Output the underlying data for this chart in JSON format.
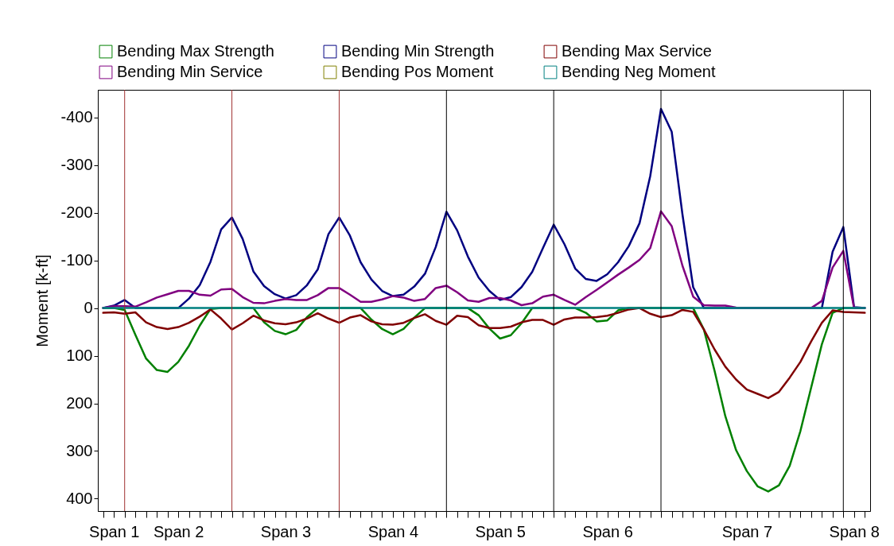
{
  "chart_data": {
    "type": "line",
    "ylabel": "Moment [k-ft]",
    "categories": [
      null,
      "Span 1",
      null,
      null,
      null,
      null,
      null,
      "Span 2",
      null,
      null,
      null,
      null,
      null,
      null,
      null,
      null,
      null,
      "Span 3",
      null,
      null,
      null,
      null,
      null,
      null,
      null,
      null,
      null,
      "Span 4",
      null,
      null,
      null,
      null,
      null,
      null,
      null,
      null,
      null,
      "Span 5",
      null,
      null,
      null,
      null,
      null,
      null,
      null,
      null,
      null,
      "Span 6",
      null,
      null,
      null,
      null,
      null,
      null,
      null,
      null,
      null,
      null,
      null,
      null,
      "Span 7",
      null,
      null,
      null,
      null,
      null,
      null,
      null,
      null,
      null,
      "Span 8",
      null
    ],
    "ylim": [
      426,
      -458
    ],
    "yticks": [
      -400,
      -300,
      -200,
      -100,
      0,
      100,
      200,
      300,
      400
    ],
    "legend": "top",
    "grid": "x",
    "series": [
      {
        "name": "Bending Max Strength",
        "color": "#008000",
        "values": [
          0,
          0,
          4,
          56,
          106,
          130,
          134,
          113,
          79,
          37,
          2,
          0,
          0,
          0,
          0,
          30,
          48,
          55,
          46,
          19,
          0,
          0,
          0,
          0,
          0,
          24,
          44,
          55,
          44,
          20,
          0,
          0,
          0,
          0,
          0,
          15,
          43,
          64,
          57,
          32,
          0,
          0,
          0,
          0,
          0,
          10,
          28,
          26,
          5,
          0,
          0,
          0,
          0,
          0,
          0,
          0,
          45,
          132,
          227,
          298,
          342,
          374,
          385,
          372,
          331,
          258,
          167,
          76,
          10,
          0,
          0,
          0
        ]
      },
      {
        "name": "Bending Min Strength",
        "color": "#000080",
        "values": [
          0,
          -5,
          -17,
          0,
          0,
          0,
          0,
          0,
          -20,
          -48,
          -97,
          -165,
          -190,
          -145,
          -77,
          -46,
          -29,
          -20,
          -27,
          -48,
          -81,
          -155,
          -190,
          -152,
          -96,
          -60,
          -36,
          -25,
          -28,
          -45,
          -72,
          -128,
          -202,
          -163,
          -108,
          -64,
          -36,
          -17,
          -23,
          -44,
          -76,
          -126,
          -175,
          -134,
          -83,
          -61,
          -57,
          -71,
          -96,
          -130,
          -178,
          -277,
          -418,
          -370,
          -197,
          -44,
          0,
          0,
          0,
          0,
          0,
          0,
          0,
          0,
          0,
          0,
          0,
          0,
          -118,
          -170,
          -2,
          0
        ]
      },
      {
        "name": "Bending Max Service",
        "color": "#800000",
        "values": [
          10,
          9,
          12,
          9,
          30,
          40,
          44,
          40,
          31,
          18,
          3,
          22,
          45,
          32,
          16,
          26,
          32,
          34,
          30,
          22,
          11,
          22,
          31,
          20,
          15,
          28,
          34,
          35,
          31,
          21,
          13,
          27,
          35,
          16,
          19,
          36,
          42,
          42,
          39,
          30,
          25,
          25,
          35,
          24,
          20,
          20,
          19,
          16,
          10,
          3,
          0,
          12,
          19,
          15,
          4,
          8,
          45,
          87,
          123,
          150,
          171,
          180,
          189,
          176,
          146,
          113,
          70,
          31,
          5,
          8,
          9,
          10
        ]
      },
      {
        "name": "Bending Min Service",
        "color": "#800080",
        "values": [
          0,
          -4,
          -4,
          -3,
          -12,
          -22,
          -29,
          -36,
          -36,
          -28,
          -26,
          -39,
          -40,
          -23,
          -11,
          -10,
          -15,
          -19,
          -17,
          -17,
          -27,
          -42,
          -42,
          -28,
          -13,
          -13,
          -18,
          -25,
          -22,
          -15,
          -19,
          -42,
          -47,
          -33,
          -16,
          -13,
          -21,
          -21,
          -16,
          -6,
          -10,
          -24,
          -28,
          -17,
          -7,
          -23,
          -38,
          -54,
          -70,
          -85,
          -101,
          -126,
          -203,
          -172,
          -89,
          -24,
          -6,
          -5,
          -5,
          -1,
          0,
          0,
          0,
          0,
          0,
          0,
          0,
          -15,
          -85,
          -120,
          0,
          0
        ]
      },
      {
        "name": "Bending Pos Moment",
        "color": "#808000",
        "values": [
          null,
          null,
          null,
          null,
          null,
          null,
          null,
          null,
          null,
          null,
          null,
          null,
          null,
          null,
          null,
          null,
          null,
          null,
          null,
          null,
          null,
          null,
          null,
          null,
          null,
          null,
          null,
          null,
          null,
          null,
          null,
          null,
          null,
          null,
          null,
          null,
          null,
          null,
          null,
          null,
          null,
          null,
          null,
          null,
          null,
          null,
          null,
          null,
          null,
          null,
          null,
          null,
          null,
          null,
          null,
          null,
          null,
          null,
          null,
          null,
          null,
          null,
          null,
          null,
          null,
          null,
          null,
          null,
          null,
          null,
          null,
          null
        ]
      },
      {
        "name": "Bending Neg Moment",
        "color": "#008080",
        "values": [
          0,
          0,
          0,
          0,
          0,
          0,
          0,
          0,
          0,
          0,
          0,
          0,
          0,
          0,
          0,
          0,
          0,
          0,
          0,
          0,
          0,
          0,
          0,
          0,
          0,
          0,
          0,
          0,
          0,
          0,
          0,
          0,
          0,
          0,
          0,
          0,
          0,
          0,
          0,
          0,
          0,
          0,
          0,
          0,
          0,
          0,
          0,
          0,
          0,
          0,
          0,
          0,
          0,
          0,
          0,
          0,
          0,
          0,
          0,
          0,
          0,
          0,
          0,
          0,
          0,
          0,
          0,
          0,
          0,
          0,
          0,
          0
        ]
      }
    ]
  }
}
